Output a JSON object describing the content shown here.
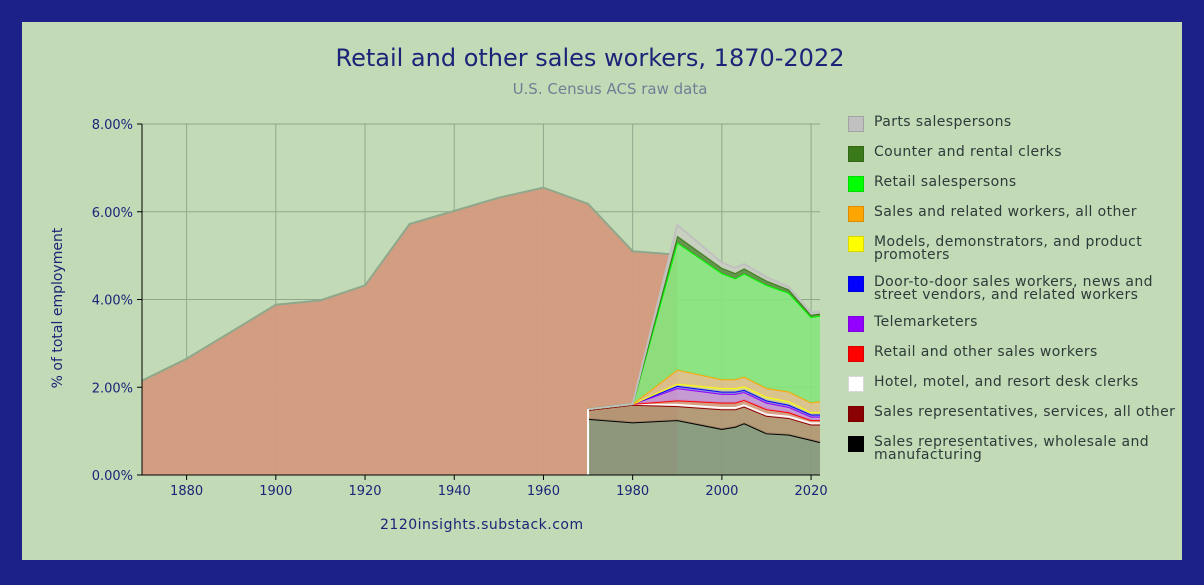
{
  "chart_data": {
    "type": "area",
    "title": "Retail and other sales workers, 1870-2022",
    "subtitle": "U.S. Census ACS raw data",
    "xlabel": "",
    "ylabel": "% of total employment",
    "xlim": [
      1870,
      2022
    ],
    "ylim": [
      0,
      8
    ],
    "x_ticks": [
      1880,
      1900,
      1920,
      1940,
      1960,
      1980,
      2000,
      2020
    ],
    "y_ticks": [
      0,
      2,
      4,
      6,
      8
    ],
    "y_tick_labels": [
      "0.00%",
      "2.00%",
      "4.00%",
      "6.00%",
      "8.00%"
    ],
    "grid": true,
    "legend_position": "right",
    "credit": "2120insights.substack.com",
    "historic_total": {
      "name": "Retail and other sales workers",
      "color": "#d49a7e",
      "x": [
        1870,
        1880,
        1900,
        1910,
        1920,
        1930,
        1940,
        1950,
        1960,
        1970,
        1980,
        1990
      ],
      "y": [
        2.15,
        2.65,
        3.88,
        3.98,
        4.32,
        5.72,
        6.02,
        6.32,
        6.55,
        6.18,
        5.1,
        5.02
      ]
    },
    "series": [
      {
        "name": "Sales representatives, wholesale and manufacturing",
        "color": "#000000",
        "fill": "#86977b",
        "x": [
          1970,
          1980,
          1990,
          2000,
          2003,
          2005,
          2010,
          2015,
          2020,
          2022
        ],
        "y": [
          1.28,
          1.2,
          1.25,
          1.05,
          1.1,
          1.18,
          0.95,
          0.92,
          0.8,
          0.75
        ]
      },
      {
        "name": "Sales representatives, services, all other",
        "color": "#8b0000",
        "fill": "#b39572",
        "x": [
          1970,
          1980,
          1990,
          2000,
          2003,
          2005,
          2010,
          2015,
          2020,
          2022
        ],
        "y": [
          0.2,
          0.4,
          0.32,
          0.45,
          0.4,
          0.38,
          0.4,
          0.38,
          0.35,
          0.4
        ]
      },
      {
        "name": "Hotel, motel, and resort desk clerks",
        "color": "#ffffff",
        "fill": "#ffffff",
        "x": [
          1970,
          1980,
          1990,
          2000,
          2003,
          2005,
          2010,
          2015,
          2020,
          2022
        ],
        "y": [
          0.02,
          0.02,
          0.05,
          0.05,
          0.05,
          0.05,
          0.05,
          0.05,
          0.05,
          0.05
        ]
      },
      {
        "name": "Retail and other sales workers",
        "color": "#ff0000",
        "fill": "#d49a7e",
        "x": [
          1970,
          1980,
          1990,
          2000,
          2003,
          2005,
          2010,
          2015,
          2020,
          2022
        ],
        "y": [
          0,
          0,
          0.08,
          0.1,
          0.1,
          0.1,
          0.1,
          0.08,
          0.05,
          0.05
        ]
      },
      {
        "name": "Telemarketers",
        "color": "#9400ff",
        "fill": "#c495d6",
        "x": [
          1970,
          1980,
          1990,
          2000,
          2003,
          2005,
          2010,
          2015,
          2020,
          2022
        ],
        "y": [
          0,
          0,
          0.28,
          0.2,
          0.2,
          0.18,
          0.15,
          0.12,
          0.08,
          0.08
        ]
      },
      {
        "name": "Door-to-door sales workers, news and street vendors, and related workers",
        "color": "#0000ff",
        "fill": "#8f95d6",
        "x": [
          1970,
          1980,
          1990,
          2000,
          2003,
          2005,
          2010,
          2015,
          2020,
          2022
        ],
        "y": [
          0,
          0,
          0.05,
          0.05,
          0.05,
          0.05,
          0.05,
          0.05,
          0.05,
          0.05
        ]
      },
      {
        "name": "Models, demonstrators, and product promoters",
        "color": "#ffff00",
        "fill": "#d7d88a",
        "x": [
          1970,
          1980,
          1990,
          2000,
          2003,
          2005,
          2010,
          2015,
          2020,
          2022
        ],
        "y": [
          0,
          0,
          0.05,
          0.08,
          0.08,
          0.08,
          0.08,
          0.08,
          0.05,
          0.05
        ]
      },
      {
        "name": "Sales and related workers, all other",
        "color": "#ffa500",
        "fill": "#dcc18c",
        "x": [
          1970,
          1980,
          1990,
          2000,
          2003,
          2005,
          2010,
          2015,
          2020,
          2022
        ],
        "y": [
          0,
          0,
          0.32,
          0.2,
          0.2,
          0.22,
          0.2,
          0.22,
          0.22,
          0.25
        ]
      },
      {
        "name": "Retail salespersons",
        "color": "#00ff00",
        "fill": "#86e47c",
        "x": [
          1970,
          1980,
          1990,
          2000,
          2003,
          2005,
          2010,
          2015,
          2020,
          2022
        ],
        "y": [
          0,
          0,
          2.9,
          2.42,
          2.3,
          2.35,
          2.35,
          2.25,
          1.95,
          1.95
        ]
      },
      {
        "name": "Counter and rental clerks",
        "color": "#3a7a1a",
        "fill": "#5c8e42",
        "x": [
          1970,
          1980,
          1990,
          2000,
          2003,
          2005,
          2010,
          2015,
          2020,
          2022
        ],
        "y": [
          0,
          0,
          0.15,
          0.12,
          0.12,
          0.12,
          0.1,
          0.08,
          0.05,
          0.05
        ]
      },
      {
        "name": "Parts salespersons",
        "color": "#c0c0c0",
        "fill": "#c9cfc0",
        "x": [
          1970,
          1980,
          1990,
          2000,
          2003,
          2005,
          2010,
          2015,
          2020,
          2022
        ],
        "y": [
          0,
          0,
          0.25,
          0.12,
          0.12,
          0.1,
          0.08,
          0.06,
          0.05,
          0.05
        ]
      }
    ]
  }
}
